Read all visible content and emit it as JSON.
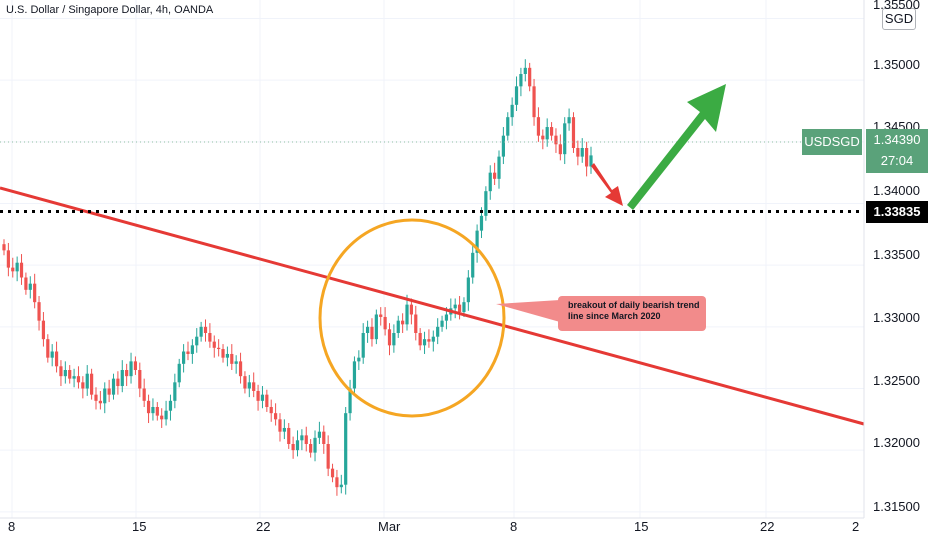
{
  "header": {
    "title": "U.S. Dollar / Singapore Dollar, 4h, OANDA",
    "currency_button": "SGD"
  },
  "price_axis": {
    "ticks": [
      "1.35500",
      "1.35000",
      "1.34500",
      "1.34000",
      "1.33500",
      "1.33000",
      "1.32500",
      "1.32000",
      "1.31500"
    ],
    "current_symbol": "USDSGD",
    "current_price": "1.34390",
    "countdown": "27:04",
    "horizontal_line_price": "1.33835"
  },
  "time_axis": {
    "ticks": [
      "8",
      "15",
      "22",
      "Mar",
      "8",
      "15",
      "22",
      "2"
    ]
  },
  "annotation": {
    "callout_text": "breakout of daily bearish trend line since March 2020"
  },
  "colors": {
    "bull": "#26a69a",
    "bear": "#ef5350",
    "trendline": "#e53935",
    "circle": "#f5a623",
    "green_arrow": "#3bab43",
    "red_arrow": "#e53935",
    "callout_bg": "#f28b8b",
    "current_price_bg": "#5aa27a"
  },
  "chart_data": {
    "type": "candlestick",
    "interval": "4h",
    "ylim": [
      1.3145,
      1.3565
    ],
    "current_price": 1.3439,
    "support_level": 1.33835,
    "candles_close": [
      1.3362,
      1.3348,
      1.3345,
      1.3352,
      1.334,
      1.333,
      1.3335,
      1.332,
      1.3305,
      1.329,
      1.3275,
      1.328,
      1.3268,
      1.326,
      1.3265,
      1.3258,
      1.326,
      1.3255,
      1.325,
      1.3262,
      1.3245,
      1.324,
      1.3238,
      1.325,
      1.3245,
      1.3258,
      1.3252,
      1.3265,
      1.326,
      1.3272,
      1.3265,
      1.325,
      1.324,
      1.323,
      1.3235,
      1.3228,
      1.3225,
      1.3232,
      1.324,
      1.3255,
      1.327,
      1.328,
      1.3278,
      1.3285,
      1.3292,
      1.33,
      1.3295,
      1.3288,
      1.3283,
      1.3282,
      1.3275,
      1.3278,
      1.327,
      1.3272,
      1.326,
      1.325,
      1.3255,
      1.3248,
      1.324,
      1.3245,
      1.3235,
      1.323,
      1.3225,
      1.3215,
      1.3218,
      1.3205,
      1.32,
      1.3208,
      1.3212,
      1.3205,
      1.3198,
      1.321,
      1.3215,
      1.3205,
      1.3185,
      1.3178,
      1.317,
      1.3172,
      1.323,
      1.325,
      1.3272,
      1.3275,
      1.3295,
      1.33,
      1.329,
      1.331,
      1.3308,
      1.3298,
      1.3285,
      1.3295,
      1.3305,
      1.3302,
      1.3318,
      1.331,
      1.3295,
      1.3285,
      1.329,
      1.3288,
      1.3292,
      1.33,
      1.3305,
      1.331,
      1.3315,
      1.3318,
      1.3312,
      1.332,
      1.334,
      1.336,
      1.3378,
      1.339,
      1.341,
      1.3425,
      1.342,
      1.3438,
      1.3455,
      1.347,
      1.348,
      1.3495,
      1.3505,
      1.351,
      1.3495,
      1.347,
      1.3455,
      1.3452,
      1.3462,
      1.3455,
      1.3448,
      1.344,
      1.3465,
      1.347,
      1.3445,
      1.3438,
      1.3445,
      1.343,
      1.3439
    ]
  }
}
